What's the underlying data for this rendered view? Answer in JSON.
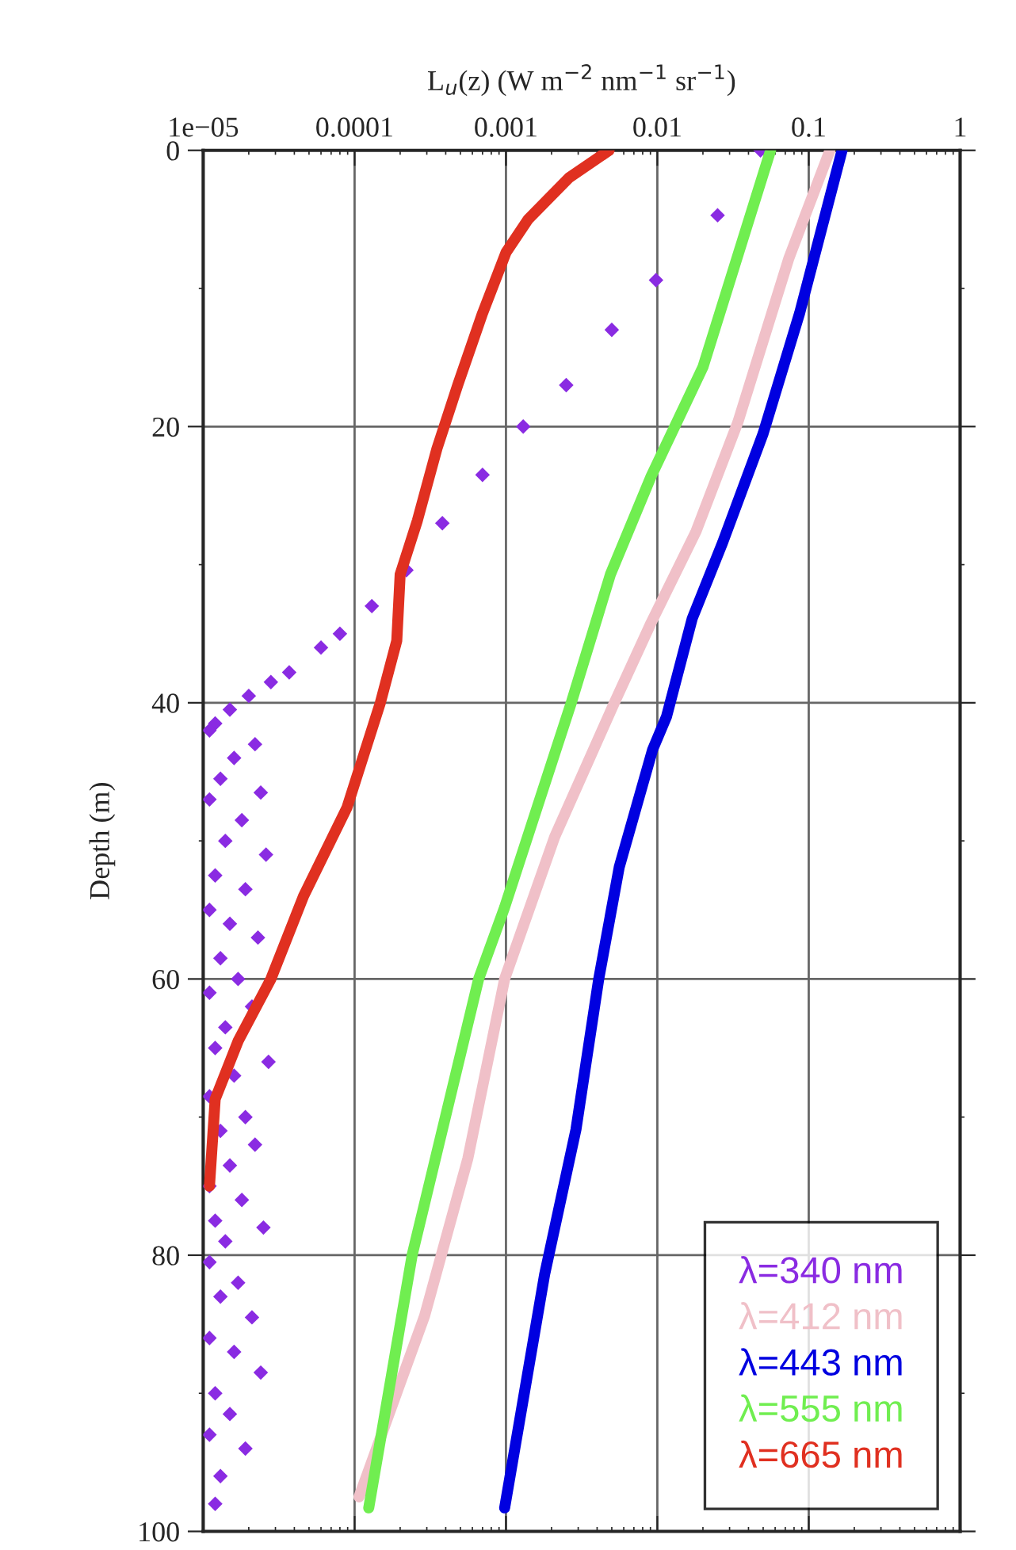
{
  "chart_data": {
    "type": "line",
    "xlabel": "L$_{u}$(z) (W m$^{−2}$ nm$^{−1}$ sr$^{−1}$)",
    "ylabel": "Depth (m)",
    "log": "x",
    "xlim": [
      1e-05,
      1
    ],
    "xticks": [
      {
        "value": 1e-05,
        "label": "1e−05"
      },
      0.0001,
      0.001,
      0.01,
      0.1,
      1
    ],
    "ylim": [
      100,
      0
    ],
    "yticks": [
      0,
      20,
      40,
      60,
      80,
      100
    ],
    "grid": true,
    "legend": "bottom right",
    "line_style": "solid",
    "marker": "none",
    "series": [
      {
        "name": "λ=340 nm",
        "color": "#8a2be2",
        "type": "scatter",
        "marker": "diamond",
        "x": [
          0.048,
          0.025,
          0.0098,
          0.005,
          0.0025,
          0.0013,
          0.0007,
          0.00038,
          0.00022,
          0.00013,
          8e-05,
          6e-05,
          3.7e-05,
          2.8e-05,
          2e-05,
          1.5e-05,
          1.2e-05,
          1.1e-05,
          2.2e-05,
          1.6e-05,
          1.3e-05,
          2.4e-05,
          1.1e-05,
          1.8e-05,
          1.4e-05,
          2.6e-05,
          1.2e-05,
          1.9e-05,
          1.1e-05,
          1.5e-05,
          2.3e-05,
          1.3e-05,
          1.7e-05,
          1.1e-05,
          2.1e-05,
          1.4e-05,
          1.2e-05,
          2.7e-05,
          1.6e-05,
          1.1e-05,
          1.9e-05,
          1.3e-05,
          2.2e-05,
          1.5e-05,
          1.1e-05,
          1.8e-05,
          1.2e-05,
          2.5e-05,
          1.4e-05,
          1.1e-05,
          1.7e-05,
          1.3e-05,
          2.1e-05,
          1.1e-05,
          1.6e-05,
          2.4e-05,
          1.2e-05,
          1.5e-05,
          1.1e-05,
          1.9e-05,
          1.3e-05,
          1.2e-05
        ],
        "values": [
          0,
          4.7,
          9.4,
          13,
          17,
          20,
          23.5,
          27,
          30.4,
          33,
          35,
          36,
          37.8,
          38.5,
          39.5,
          40.5,
          41.5,
          42,
          43,
          44,
          45.5,
          46.5,
          47,
          48.5,
          50,
          51,
          52.5,
          53.5,
          55,
          56,
          57,
          58.5,
          60,
          61,
          62,
          63.5,
          65,
          66,
          67,
          68.5,
          70,
          71,
          72,
          73.5,
          75,
          76,
          77.5,
          78,
          79,
          80.5,
          82,
          83,
          84.5,
          86,
          87,
          88.5,
          90,
          91.5,
          93,
          94,
          96,
          98
        ]
      },
      {
        "name": "λ=412 nm",
        "color": "#f0c0c8",
        "x": [
          0.138,
          0.074,
          0.034,
          0.018,
          0.0091,
          0.0052,
          0.0021,
          0.00098,
          0.00056,
          0.00029,
          0.000107
        ],
        "values": [
          0,
          7.8,
          19.7,
          27.6,
          34.2,
          40,
          49.7,
          60,
          73,
          84.4,
          97.5
        ]
      },
      {
        "name": "λ=443 nm",
        "color": "#0000e0",
        "x": [
          0.166,
          0.087,
          0.05,
          0.027,
          0.017,
          0.0115,
          0.0093,
          0.0056,
          0.0041,
          0.0029,
          0.0018,
          0.00098
        ],
        "values": [
          0,
          11.8,
          20.5,
          28.4,
          33.9,
          41,
          43.4,
          51.9,
          60,
          70.9,
          81.4,
          98.3
        ]
      },
      {
        "name": "λ=555 nm",
        "color": "#70ee50",
        "x": [
          0.056,
          0.02,
          0.0091,
          0.0049,
          0.0027,
          0.00098,
          0.00066,
          0.00024,
          0.000124
        ],
        "values": [
          0,
          15.7,
          23.6,
          30.7,
          40,
          54.8,
          60,
          80,
          98.3
        ]
      },
      {
        "name": "λ=665 nm",
        "color": "#e03020",
        "x": [
          0.0048,
          0.0026,
          0.0014,
          0.001,
          0.0007,
          0.00048,
          0.00035,
          0.00026,
          0.0002,
          0.00019,
          0.000148,
          8.9e-05,
          4.6e-05,
          2.8e-05,
          1.7e-05,
          1.2e-05,
          1.1e-05
        ],
        "values": [
          0,
          2,
          5,
          7.4,
          11.8,
          17,
          21.6,
          26.8,
          30.7,
          35.5,
          40,
          47.6,
          54,
          60,
          64.5,
          68.7,
          75
        ]
      }
    ]
  }
}
